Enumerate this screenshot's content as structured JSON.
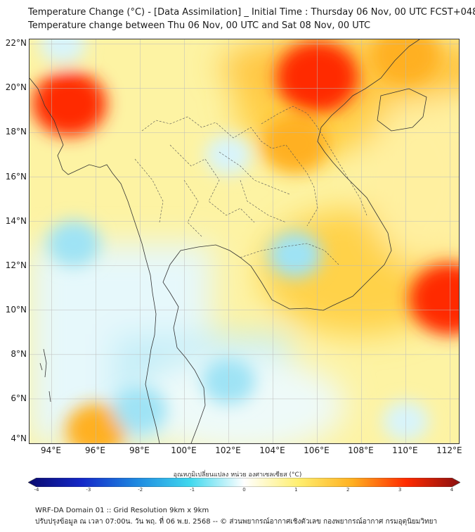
{
  "title_line1": "Temperature Change (°C) - [Data Assimilation] _ Initial Time : Thursday 06 Nov, 00 UTC FCST+048",
  "title_line2": "Temperature change between Thu 06 Nov, 00 UTC and Sat 08 Nov, 00 UTC",
  "lat_labels": [
    "22°N",
    "20°N",
    "18°N",
    "16°N",
    "14°N",
    "12°N",
    "10°N",
    "8°N",
    "6°N",
    "4°N"
  ],
  "lon_labels": [
    "94°E",
    "96°E",
    "98°E",
    "100°E",
    "102°E",
    "104°E",
    "106°E",
    "108°E",
    "110°E",
    "112°E"
  ],
  "map": {
    "lat_range": [
      4,
      22.2
    ],
    "lon_range": [
      93,
      112.4
    ],
    "grid": true,
    "warm_spots": [
      {
        "lon": 106,
        "lat": 20.5,
        "change": 3
      },
      {
        "lon": 112,
        "lat": 10.5,
        "change": 3
      },
      {
        "lon": 94.8,
        "lat": 19.3,
        "change": 2.5
      },
      {
        "lon": 105,
        "lat": 17.5,
        "change": 2
      },
      {
        "lon": 110,
        "lat": 21.5,
        "change": 2
      },
      {
        "lon": 96,
        "lat": 4.6,
        "change": 1.5
      }
    ],
    "cool_spots": [
      {
        "lon": 102,
        "lat": 6.8,
        "change": -1
      },
      {
        "lon": 98,
        "lat": 5.5,
        "change": -1
      },
      {
        "lon": 95,
        "lat": 13,
        "change": -1
      },
      {
        "lon": 105,
        "lat": 12.5,
        "change": -1
      },
      {
        "lon": 102,
        "lat": 17,
        "change": -0.5
      },
      {
        "lon": 94.5,
        "lat": 22,
        "change": -0.5
      },
      {
        "lon": 110,
        "lat": 5,
        "change": -0.5
      }
    ]
  },
  "colorbar": {
    "title": "อุณหภูมิเปลี่ยนแปลง หน่วย องศาเซลเซียส (°C)",
    "ticks": [
      "-4",
      "-3",
      "-2",
      "-1",
      "0",
      "1",
      "2",
      "3",
      "4"
    ],
    "range": [
      -4,
      4
    ],
    "colors": [
      "#0a0a6e",
      "#1428c8",
      "#1e88e0",
      "#40d8ee",
      "#ffffff",
      "#ffef70",
      "#ffb020",
      "#ff2a00",
      "#8a1010"
    ]
  },
  "footer_line1": "WRF-DA Domain 01 :: Grid Resolution 9km x 9km",
  "footer_line2": "ปรับปรุงข้อมูล ณ เวลา 07:00น. วัน พฤ. ที่ 06 พ.ย. 2568 -- © ส่วนพยากรณ์อากาศเชิงตัวเลข กองพยากรณ์อากาศ กรมอุตุนิยมวิทยา"
}
